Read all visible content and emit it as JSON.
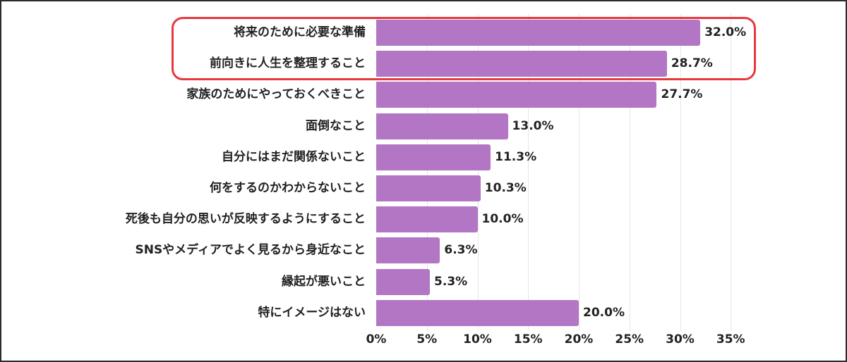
{
  "chart_data": {
    "type": "bar",
    "orientation": "horizontal",
    "title": "",
    "xlabel": "",
    "ylabel": "",
    "xlim": [
      0,
      35
    ],
    "x_ticks": [
      "0%",
      "5%",
      "10%",
      "15%",
      "20%",
      "25%",
      "30%",
      "35%"
    ],
    "grid": true,
    "legend": null,
    "bar_color": "#b276c4",
    "highlight_color": "#e8383d",
    "highlighted_categories": [
      "将来のために必要な準備",
      "前向きに人生を整理すること"
    ],
    "categories": [
      "将来のために必要な準備",
      "前向きに人生を整理すること",
      "家族のためにやっておくべきこと",
      "面倒なこと",
      "自分にはまだ関係ないこと",
      "何をするのかわからないこと",
      "死後も自分の思いが反映するようにすること",
      "SNSやメディアでよく見るから身近なこと",
      "縁起が悪いこと",
      "特にイメージはない"
    ],
    "values": [
      32.0,
      28.7,
      27.7,
      13.0,
      11.3,
      10.3,
      10.0,
      6.3,
      5.3,
      20.0
    ],
    "value_labels": [
      "32.0%",
      "28.7%",
      "27.7%",
      "13.0%",
      "11.3%",
      "10.3%",
      "10.0%",
      "6.3%",
      "5.3%",
      "20.0%"
    ]
  }
}
